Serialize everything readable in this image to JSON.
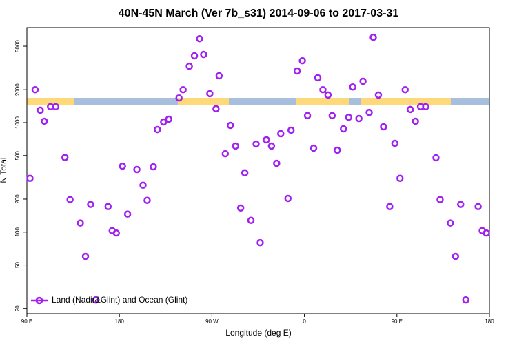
{
  "chart_data": {
    "type": "scatter",
    "title": "40N-45N March (Ver 7b_s31)   2014-09-06 to 2017-03-31",
    "x_label": "Longitude (deg E)",
    "y_label": "N Total",
    "series": [
      {
        "name": "Land (Nadir&Glint) and Ocean (Glint)",
        "color": "#a020f0",
        "x": [
          93,
          98,
          103,
          107,
          113,
          118,
          127,
          132,
          142,
          147,
          152,
          157,
          169,
          173,
          177,
          183,
          188,
          197,
          203,
          207,
          213,
          217,
          223,
          228,
          238,
          242,
          248,
          253,
          258,
          262,
          268,
          274,
          277,
          283,
          288,
          293,
          298,
          302,
          308,
          313,
          317,
          323,
          328,
          333,
          337,
          344,
          347,
          353,
          358,
          363,
          369,
          373,
          378,
          383,
          387,
          392,
          398,
          403,
          407,
          413,
          417,
          423,
          427,
          432,
          437,
          443,
          448,
          453,
          458,
          463,
          468,
          473,
          478,
          488,
          492,
          502,
          507,
          512,
          517,
          529,
          533,
          537
        ],
        "values": [
          310,
          2000,
          1300,
          1030,
          1400,
          1400,
          480,
          198,
          121,
          60,
          179,
          24,
          171,
          103,
          98,
          400,
          146,
          373,
          268,
          195,
          395,
          865,
          1015,
          1075,
          1680,
          2000,
          3280,
          4080,
          5850,
          4200,
          1840,
          1340,
          2680,
          520,
          944,
          611,
          166,
          348,
          128,
          638,
          80,
          697,
          611,
          425,
          793,
          203,
          853,
          2970,
          3680,
          1160,
          585,
          2570,
          2000,
          1790,
          1160,
          560,
          877,
          1120,
          2120,
          1090,
          2390,
          1240,
          6030,
          1790,
          917,
          171,
          647,
          310,
          2000,
          1320,
          1030,
          1400,
          1400,
          477,
          198,
          121,
          60,
          179,
          24,
          171,
          103,
          98
        ]
      }
    ],
    "xlim": [
      90,
      540
    ],
    "xticks": [
      {
        "value": 90,
        "label": "90 E"
      },
      {
        "value": 180,
        "label": "180"
      },
      {
        "value": 270,
        "label": "90 W"
      },
      {
        "value": 360,
        "label": "0"
      },
      {
        "value": 450,
        "label": "90 E"
      },
      {
        "value": 540,
        "label": "180"
      }
    ],
    "ylim": [
      18,
      7400
    ],
    "yticks": [
      20,
      50,
      100,
      200,
      500,
      1000,
      2000,
      5000
    ],
    "log_y": true,
    "hline": 50,
    "legend": "bottom-left"
  }
}
